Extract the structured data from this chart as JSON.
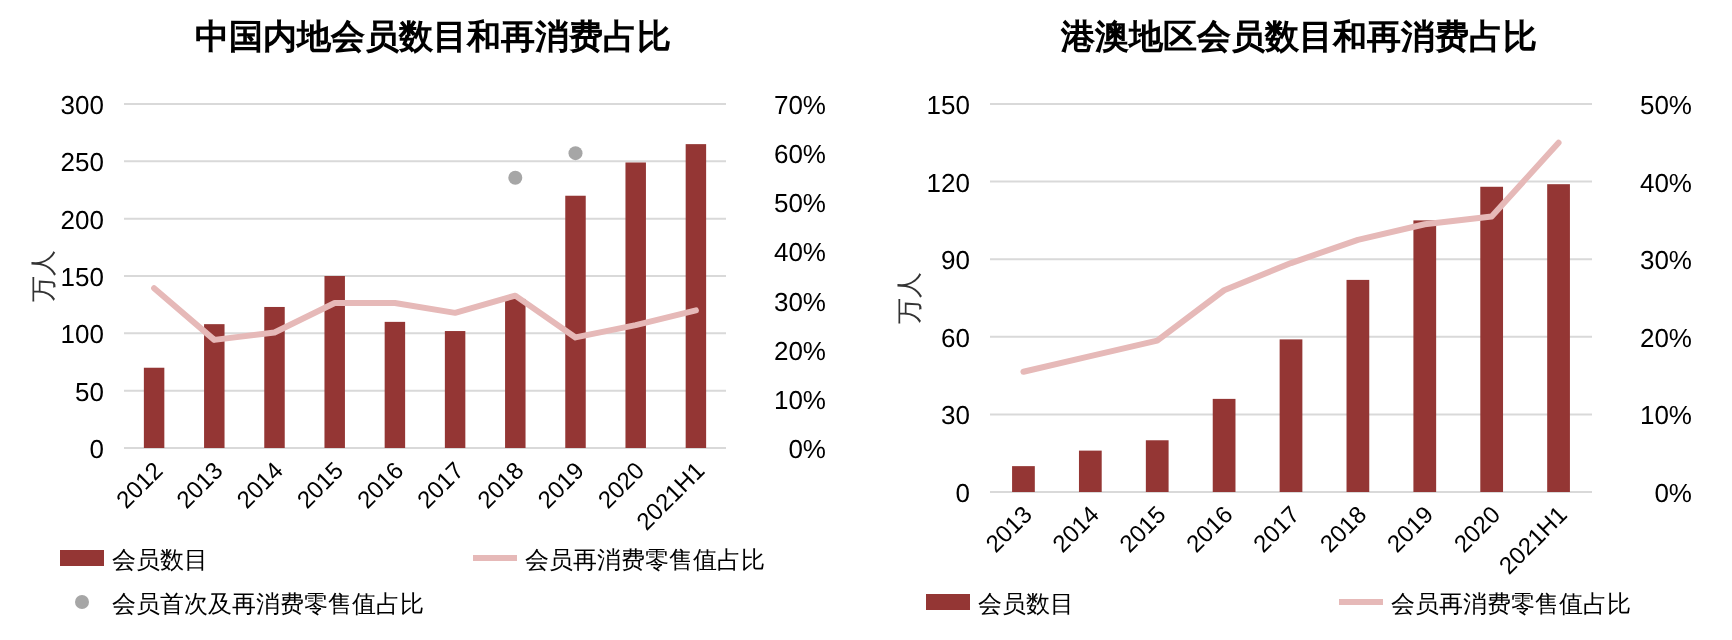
{
  "chart_data": [
    {
      "type": "bar",
      "title": "中国内地会员数目和再消费占比",
      "ylabel": "万人",
      "categories": [
        "2012",
        "2013",
        "2014",
        "2015",
        "2016",
        "2017",
        "2018",
        "2019",
        "2020",
        "2021H1"
      ],
      "series": [
        {
          "name": "会员数目",
          "color": "#943634",
          "values": [
            70,
            108,
            123,
            150,
            110,
            102,
            130,
            220,
            249,
            265
          ]
        },
        {
          "name": "会员再消费零售值占比",
          "type": "line",
          "axis": "y2",
          "color": "#e6b9b8",
          "values": [
            32.5,
            22,
            23.5,
            29.5,
            29.5,
            27.5,
            31,
            22.5,
            25,
            28
          ]
        },
        {
          "name": "会员首次及再消费零售值占比",
          "type": "scatter",
          "axis": "y2",
          "color": "#a6a6a6",
          "values": [
            null,
            null,
            null,
            null,
            null,
            null,
            55,
            60,
            null,
            null
          ]
        }
      ],
      "ylim": [
        0,
        300
      ],
      "yticks": [
        0,
        50,
        100,
        150,
        200,
        250,
        300
      ],
      "y2lim": [
        0,
        70
      ],
      "y2ticks": [
        {
          "value": 0,
          "label": "0%"
        },
        {
          "value": 10,
          "label": "10%"
        },
        {
          "value": 20,
          "label": "20%"
        },
        {
          "value": 30,
          "label": "30%"
        },
        {
          "value": 40,
          "label": "40%"
        },
        {
          "value": 50,
          "label": "50%"
        },
        {
          "value": 60,
          "label": "60%"
        },
        {
          "value": 70,
          "label": "70%"
        }
      ],
      "grid": "y",
      "legend": "bottom"
    },
    {
      "type": "bar",
      "title": "港澳地区会员数目和再消费占比",
      "ylabel": "万人",
      "categories": [
        "2013",
        "2014",
        "2015",
        "2016",
        "2017",
        "2018",
        "2019",
        "2020",
        "2021H1"
      ],
      "series": [
        {
          "name": "会员数目",
          "color": "#943634",
          "values": [
            10,
            16,
            20,
            36,
            59,
            82,
            105,
            118,
            119
          ]
        },
        {
          "name": "会员再消费零售值占比",
          "type": "line",
          "axis": "y2",
          "color": "#e6b9b8",
          "values": [
            15.5,
            17.5,
            19.5,
            26,
            29.5,
            32.5,
            34.5,
            35.5,
            45
          ]
        }
      ],
      "ylim": [
        0,
        150
      ],
      "yticks": [
        0,
        30,
        60,
        90,
        120,
        150
      ],
      "y2lim": [
        0,
        50
      ],
      "y2ticks": [
        {
          "value": 0,
          "label": "0%"
        },
        {
          "value": 10,
          "label": "10%"
        },
        {
          "value": 20,
          "label": "20%"
        },
        {
          "value": 30,
          "label": "30%"
        },
        {
          "value": 40,
          "label": "40%"
        },
        {
          "value": 50,
          "label": "50%"
        }
      ],
      "grid": "y",
      "legend": "bottom"
    }
  ]
}
